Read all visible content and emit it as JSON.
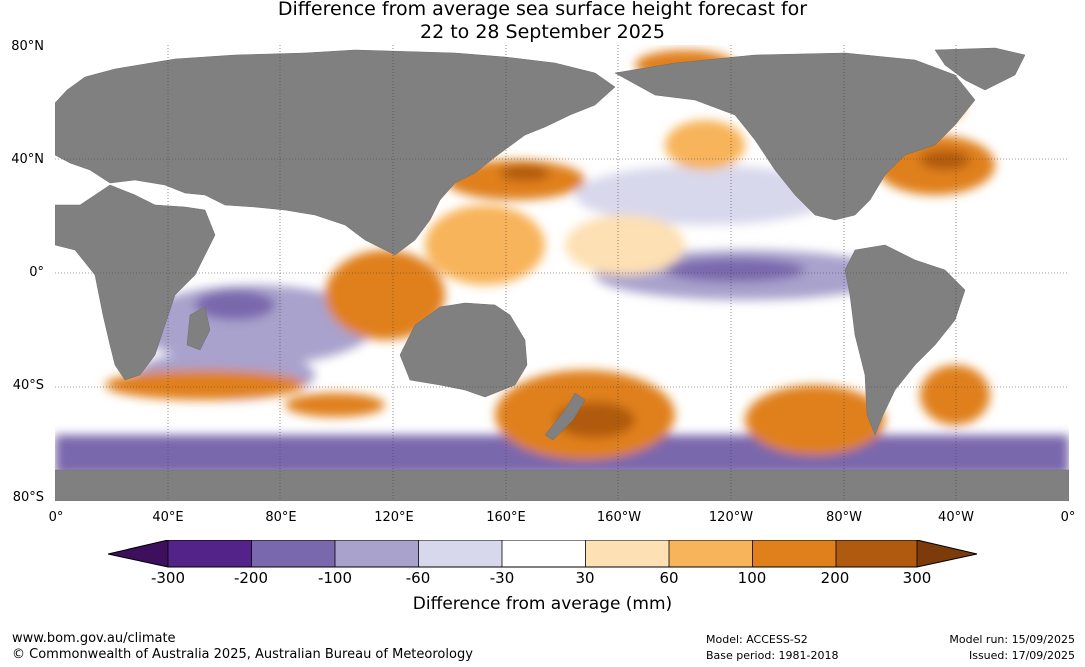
{
  "title_line1": "Difference from average sea surface height forecast for",
  "title_line2": "22 to 28 September 2025",
  "lat_labels": [
    "80°N",
    "40°N",
    "0°",
    "40°S",
    "80°S"
  ],
  "lon_labels": [
    "0°",
    "40°E",
    "80°E",
    "120°E",
    "160°E",
    "160°W",
    "120°W",
    "80°W",
    "40°W",
    "0°"
  ],
  "colorbar": {
    "ticks": [
      "-300",
      "-200",
      "-100",
      "-60",
      "-30",
      "30",
      "60",
      "100",
      "200",
      "300"
    ],
    "colors": [
      "#3d0f5c",
      "#54238a",
      "#7a68ad",
      "#a9a2cc",
      "#d8d8ec",
      "#ffffff",
      "#fde0b3",
      "#f8b45a",
      "#e0801a",
      "#b05a10",
      "#7d3a0a"
    ],
    "title": "Difference from average (mm)"
  },
  "colors": {
    "land": "#808080",
    "ocean_neutral": "#ffffff"
  },
  "footer": {
    "website": "www.bom.gov.au/climate",
    "copyright": "© Commonwealth of Australia 2025, Australian Bureau of Meteorology",
    "model": "Model: ACCESS-S2",
    "base_period": "Base period: 1981-2018",
    "model_run": "Model run: 15/09/2025",
    "issued": "Issued: 17/09/2025"
  }
}
